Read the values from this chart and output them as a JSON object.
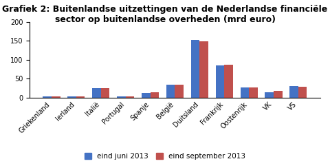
{
  "title_line1": "Grafiek 2: Buitenlandse uitzettingen van de Nederlandse financiële",
  "title_line2": "sector op buitenlandse overheden (mrd euro)",
  "categories": [
    "Griekenland",
    "Ierland",
    "Italië",
    "Portugal",
    "Spanje",
    "België",
    "Duitsland",
    "Frankrijk",
    "Oostenrijk",
    "VK",
    "VS"
  ],
  "june_2013": [
    3,
    3,
    24,
    3,
    12,
    33,
    153,
    85,
    27,
    13,
    31
  ],
  "sept_2013": [
    3,
    3,
    24,
    3,
    14,
    33,
    149,
    87,
    27,
    17,
    29
  ],
  "color_june": "#4472C4",
  "color_sept": "#C0504D",
  "legend_june": "eind juni 2013",
  "legend_sept": "eind september 2013",
  "ylim": [
    0,
    200
  ],
  "yticks": [
    0,
    50,
    100,
    150,
    200
  ],
  "bar_width": 0.35,
  "background_color": "#FFFFFF",
  "title_fontsize": 9,
  "tick_fontsize": 7,
  "legend_fontsize": 7.5
}
